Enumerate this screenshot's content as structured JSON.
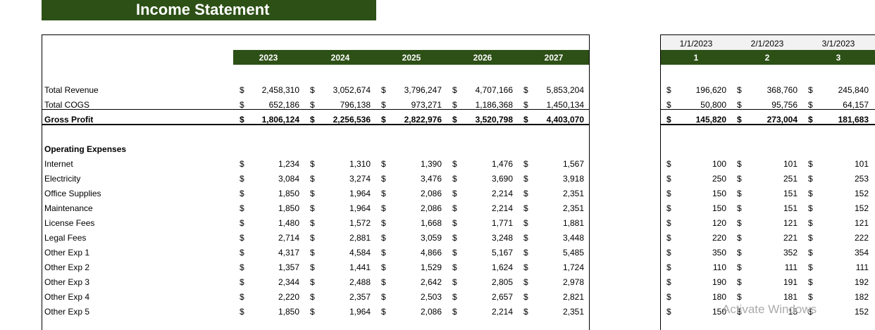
{
  "title": "Income Statement",
  "annual": {
    "years": [
      "2023",
      "2024",
      "2025",
      "2026",
      "2027"
    ]
  },
  "monthly": {
    "dates": [
      "1/1/2023",
      "2/1/2023",
      "3/1/2023"
    ],
    "periods": [
      "1",
      "2",
      "3"
    ]
  },
  "currency_symbol": "$",
  "rows": [
    {
      "label": "Total Revenue",
      "annual": [
        "2,458,310",
        "3,052,674",
        "3,796,247",
        "4,707,166",
        "5,853,204"
      ],
      "monthly": [
        "196,620",
        "368,760",
        "245,840"
      ]
    },
    {
      "label": "Total COGS",
      "annual": [
        "652,186",
        "796,138",
        "973,271",
        "1,186,368",
        "1,450,134"
      ],
      "monthly": [
        "50,800",
        "95,756",
        "64,157"
      ]
    },
    {
      "label": "Gross Profit",
      "annual": [
        "1,806,124",
        "2,256,536",
        "2,822,976",
        "3,520,798",
        "4,403,070"
      ],
      "monthly": [
        "145,820",
        "273,004",
        "181,683"
      ]
    },
    {
      "label": "Operating Expenses"
    },
    {
      "label": "Internet",
      "annual": [
        "1,234",
        "1,310",
        "1,390",
        "1,476",
        "1,567"
      ],
      "monthly": [
        "100",
        "101",
        "101"
      ]
    },
    {
      "label": "Electricity",
      "annual": [
        "3,084",
        "3,274",
        "3,476",
        "3,690",
        "3,918"
      ],
      "monthly": [
        "250",
        "251",
        "253"
      ]
    },
    {
      "label": "Office Supplies",
      "annual": [
        "1,850",
        "1,964",
        "2,086",
        "2,214",
        "2,351"
      ],
      "monthly": [
        "150",
        "151",
        "152"
      ]
    },
    {
      "label": "Maintenance",
      "annual": [
        "1,850",
        "1,964",
        "2,086",
        "2,214",
        "2,351"
      ],
      "monthly": [
        "150",
        "151",
        "152"
      ]
    },
    {
      "label": "License Fees",
      "annual": [
        "1,480",
        "1,572",
        "1,668",
        "1,771",
        "1,881"
      ],
      "monthly": [
        "120",
        "121",
        "121"
      ]
    },
    {
      "label": "Legal Fees",
      "annual": [
        "2,714",
        "2,881",
        "3,059",
        "3,248",
        "3,448"
      ],
      "monthly": [
        "220",
        "221",
        "222"
      ]
    },
    {
      "label": "Other Exp 1",
      "annual": [
        "4,317",
        "4,584",
        "4,866",
        "5,167",
        "5,485"
      ],
      "monthly": [
        "350",
        "352",
        "354"
      ]
    },
    {
      "label": "Other Exp 2",
      "annual": [
        "1,357",
        "1,441",
        "1,529",
        "1,624",
        "1,724"
      ],
      "monthly": [
        "110",
        "111",
        "111"
      ]
    },
    {
      "label": "Other Exp 3",
      "annual": [
        "2,344",
        "2,488",
        "2,642",
        "2,805",
        "2,978"
      ],
      "monthly": [
        "190",
        "191",
        "192"
      ]
    },
    {
      "label": "Other Exp 4",
      "annual": [
        "2,220",
        "2,357",
        "2,503",
        "2,657",
        "2,821"
      ],
      "monthly": [
        "180",
        "181",
        "182"
      ]
    },
    {
      "label": "Other Exp 5",
      "annual": [
        "1,850",
        "1,964",
        "2,086",
        "2,214",
        "2,351"
      ],
      "monthly": [
        "150",
        "15",
        "152"
      ]
    }
  ],
  "watermark": "Activate Windows",
  "colors": {
    "header_green": "#2d5016"
  }
}
